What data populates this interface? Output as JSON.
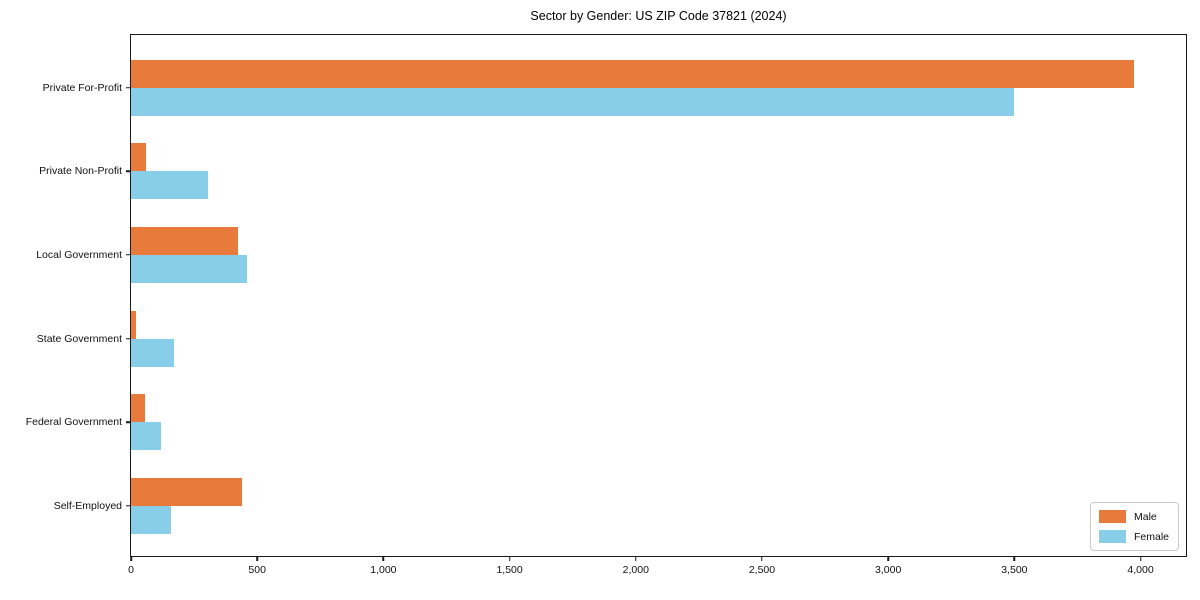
{
  "chart_data": {
    "type": "bar",
    "orientation": "horizontal",
    "title": "Sector by Gender: US ZIP Code 37821 (2024)",
    "categories": [
      "Private For-Profit",
      "Private Non-Profit",
      "Local Government",
      "State Government",
      "Federal Government",
      "Self-Employed"
    ],
    "series": [
      {
        "name": "Male",
        "color": "#E87B3C",
        "values": [
          3975,
          60,
          425,
          18,
          55,
          440
        ]
      },
      {
        "name": "Female",
        "color": "#89CEE8",
        "values": [
          3500,
          305,
          460,
          170,
          120,
          160
        ]
      }
    ],
    "xlabel": "",
    "ylabel": "",
    "xlim": [
      0,
      4180
    ],
    "x_ticks": {
      "values": [
        0,
        500,
        1000,
        1500,
        2000,
        2500,
        3000,
        3500,
        4000
      ],
      "labels": [
        "0",
        "500",
        "1,000",
        "1,500",
        "2,000",
        "2,500",
        "3,000",
        "3,500",
        "4,000"
      ]
    },
    "grid": false,
    "legend": {
      "position": "lower right",
      "labels": [
        "Male",
        "Female"
      ]
    }
  }
}
